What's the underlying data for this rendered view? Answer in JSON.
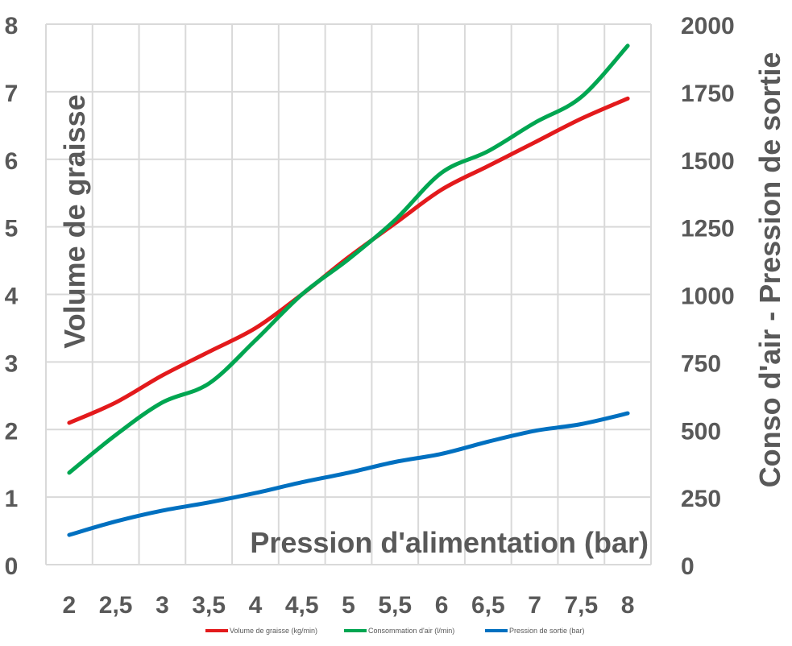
{
  "chart_data": {
    "type": "line",
    "x": [
      2,
      2.5,
      3,
      3.5,
      4,
      4.5,
      5,
      5.5,
      6,
      6.5,
      7,
      7.5,
      8
    ],
    "x_tick_labels": [
      "2",
      "2,5",
      "3",
      "3,5",
      "4",
      "4,5",
      "5",
      "5,5",
      "6",
      "6,5",
      "7",
      "7,5",
      "8"
    ],
    "xlabel": "Pression d'alimentation (bar)",
    "ylabel": "Volume de graisse",
    "y2label": "Conso d'air - Pression de sortie",
    "ylim": [
      0,
      8
    ],
    "y_ticks": [
      0,
      1,
      2,
      3,
      4,
      5,
      6,
      7,
      8
    ],
    "y2lim": [
      0,
      2000
    ],
    "y2_ticks": [
      0,
      250,
      500,
      750,
      1000,
      1250,
      1500,
      1750,
      2000
    ],
    "grid": true,
    "legend_position": "bottom",
    "series": [
      {
        "name": "Volume de graisse (kg/min)",
        "axis": "left",
        "color": "#e31a1c",
        "values": [
          2.1,
          2.4,
          2.8,
          3.15,
          3.5,
          4.0,
          4.55,
          5.05,
          5.55,
          5.9,
          6.25,
          6.6,
          6.9
        ]
      },
      {
        "name": "Consommation d'air (l/min)",
        "axis": "right",
        "color": "#00a651",
        "values": [
          340,
          480,
          600,
          670,
          830,
          1000,
          1130,
          1275,
          1450,
          1530,
          1635,
          1730,
          1920
        ]
      },
      {
        "name": "Pression de sortie (bar)",
        "axis": "right",
        "color": "#0070c0",
        "values": [
          110,
          160,
          200,
          230,
          265,
          305,
          340,
          380,
          410,
          455,
          495,
          520,
          560
        ]
      }
    ]
  }
}
